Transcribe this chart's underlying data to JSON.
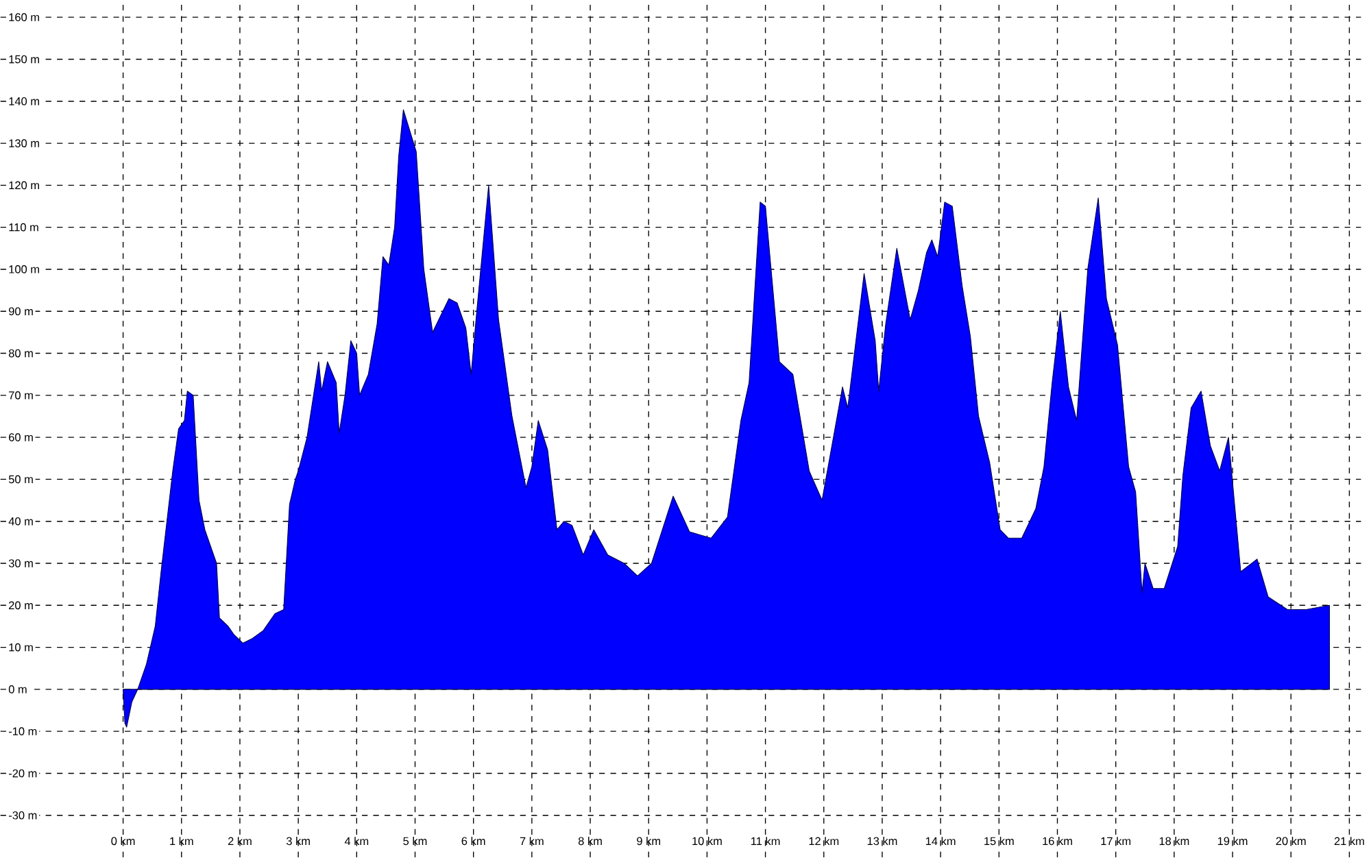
{
  "chart_data": {
    "type": "area",
    "color": "#0000ff",
    "grid": true,
    "xlim": [
      -2.1,
      21.2
    ],
    "ylim": [
      -40,
      164
    ],
    "x": [
      0,
      0.03,
      0.06,
      0.15,
      0.25,
      0.4,
      0.55,
      0.65,
      0.75,
      0.85,
      0.95,
      1.05,
      1.1,
      1.2,
      1.3,
      1.4,
      1.6,
      1.65,
      1.8,
      1.9,
      2.05,
      2.2,
      2.4,
      2.6,
      2.75,
      2.85,
      2.95,
      3.0,
      3.15,
      3.35,
      3.4,
      3.5,
      3.65,
      3.7,
      3.8,
      3.9,
      4.0,
      4.05,
      4.2,
      4.35,
      4.45,
      4.55,
      4.65,
      4.72,
      4.8,
      5.02,
      5.15,
      5.3,
      5.58,
      5.72,
      5.87,
      5.96,
      6.05,
      6.26,
      6.43,
      6.66,
      6.9,
      7.0,
      7.11,
      7.27,
      7.43,
      7.55,
      7.69,
      7.88,
      8.06,
      8.3,
      8.58,
      8.81,
      9.05,
      9.42,
      9.7,
      10.07,
      10.35,
      10.58,
      10.72,
      10.91,
      11.0,
      11.24,
      11.47,
      11.75,
      11.97,
      12.32,
      12.41,
      12.69,
      12.88,
      12.94,
      13.06,
      13.25,
      13.48,
      13.62,
      13.76,
      13.85,
      13.95,
      14.07,
      14.2,
      14.37,
      14.51,
      14.65,
      14.84,
      15.02,
      15.16,
      15.39,
      15.63,
      15.77,
      15.91,
      16.05,
      16.19,
      16.33,
      16.52,
      16.7,
      16.84,
      17.03,
      17.22,
      17.34,
      17.45,
      17.5,
      17.64,
      17.83,
      18.06,
      18.15,
      18.29,
      18.46,
      18.62,
      18.78,
      18.93,
      19.14,
      19.42,
      19.61,
      19.94,
      20.26,
      20.66
    ],
    "values": [
      0,
      -8,
      -9,
      -3,
      0,
      6,
      15,
      28,
      40,
      52,
      62,
      64,
      71,
      70,
      45,
      38,
      30,
      17,
      15,
      13,
      11,
      12,
      14,
      18,
      19,
      44,
      50,
      52,
      60,
      78,
      71,
      78,
      73,
      61,
      70,
      83,
      80,
      70,
      75,
      87,
      103,
      101,
      110,
      127,
      138,
      128,
      100,
      85,
      93,
      92,
      86,
      75,
      89,
      120,
      88,
      65,
      48,
      53,
      64,
      57,
      38,
      40,
      39,
      32,
      38,
      32,
      30,
      27,
      30,
      46,
      37.5,
      36,
      41,
      64,
      73,
      116,
      115,
      78,
      75,
      52,
      45,
      72,
      67,
      99,
      83,
      71,
      87,
      105,
      88,
      95,
      104,
      107,
      103,
      116,
      115,
      96,
      84,
      65,
      54,
      38,
      36,
      36,
      43,
      53,
      73,
      90,
      72,
      64,
      100,
      117,
      93,
      82,
      53,
      47,
      23,
      30,
      24,
      24,
      34,
      51,
      67,
      71,
      58,
      52,
      60,
      28,
      31,
      22,
      19,
      19,
      20
    ],
    "xticks": [
      {
        "value": 0,
        "label": "0 km"
      },
      {
        "value": 1,
        "label": "1 km"
      },
      {
        "value": 2,
        "label": "2 km"
      },
      {
        "value": 3,
        "label": "3 km"
      },
      {
        "value": 4,
        "label": "4 km"
      },
      {
        "value": 5,
        "label": "5 km"
      },
      {
        "value": 6,
        "label": "6 km"
      },
      {
        "value": 7,
        "label": "7 km"
      },
      {
        "value": 8,
        "label": "8 km"
      },
      {
        "value": 9,
        "label": "9 km"
      },
      {
        "value": 10,
        "label": "10 km"
      },
      {
        "value": 11,
        "label": "11 km"
      },
      {
        "value": 12,
        "label": "12 km"
      },
      {
        "value": 13,
        "label": "13 km"
      },
      {
        "value": 14,
        "label": "14 km"
      },
      {
        "value": 15,
        "label": "15 km"
      },
      {
        "value": 16,
        "label": "16 km"
      },
      {
        "value": 17,
        "label": "17 km"
      },
      {
        "value": 18,
        "label": "18 km"
      },
      {
        "value": 19,
        "label": "19 km"
      },
      {
        "value": 20,
        "label": "20 km"
      },
      {
        "value": 21,
        "label": "21 km"
      }
    ],
    "yticks": [
      {
        "value": -30,
        "label": "-30 m"
      },
      {
        "value": -20,
        "label": "-20 m"
      },
      {
        "value": -10,
        "label": "-10 m"
      },
      {
        "value": 0,
        "label": "0 m"
      },
      {
        "value": 10,
        "label": "10 m"
      },
      {
        "value": 20,
        "label": "20 m"
      },
      {
        "value": 30,
        "label": "30 m"
      },
      {
        "value": 40,
        "label": "40 m"
      },
      {
        "value": 50,
        "label": "50 m"
      },
      {
        "value": 60,
        "label": "60 m"
      },
      {
        "value": 70,
        "label": "70 m"
      },
      {
        "value": 80,
        "label": "80 m"
      },
      {
        "value": 90,
        "label": "90 m"
      },
      {
        "value": 100,
        "label": "100 m"
      },
      {
        "value": 110,
        "label": "110 m"
      },
      {
        "value": 120,
        "label": "120 m"
      },
      {
        "value": 130,
        "label": "130 m"
      },
      {
        "value": 140,
        "label": "140 m"
      },
      {
        "value": 150,
        "label": "150 m"
      },
      {
        "value": 160,
        "label": "160 m"
      }
    ]
  }
}
